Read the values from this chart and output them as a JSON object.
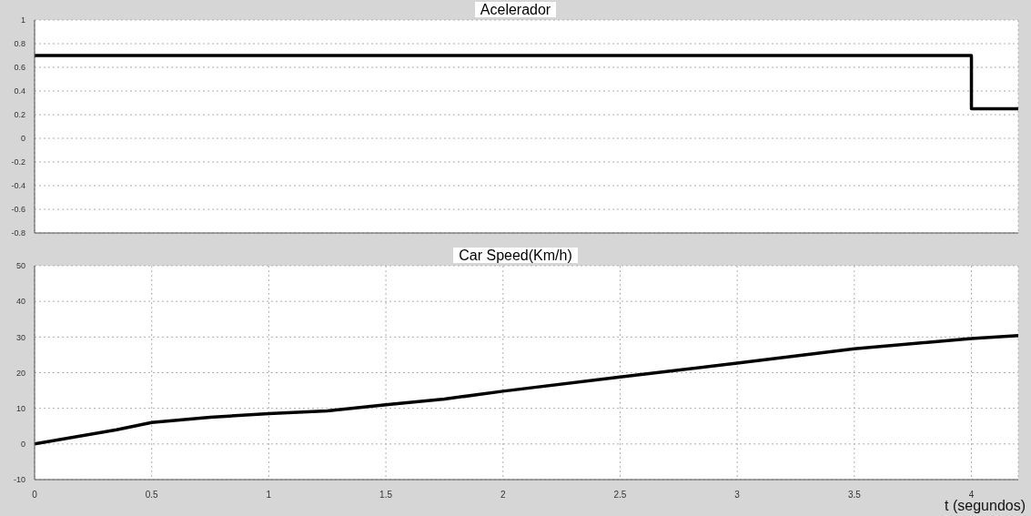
{
  "chart_data": [
    {
      "type": "step",
      "title": "Acelerador",
      "x": [
        0,
        4,
        4.2
      ],
      "series": [
        {
          "color": "#000000",
          "values": [
            0.7,
            0.25,
            0.25
          ]
        }
      ],
      "xlim": [
        0,
        4.2
      ],
      "xticks": [
        0,
        0.5,
        1,
        1.5,
        2,
        2.5,
        3,
        3.5,
        4
      ],
      "ylim": [
        -0.8,
        1
      ],
      "yticks": [
        -0.8,
        -0.6,
        -0.4,
        -0.2,
        0,
        0.2,
        0.4,
        0.6,
        0.8,
        1
      ],
      "grid": true,
      "tick_labels": "y"
    },
    {
      "type": "line",
      "title": "Car Speed(Km/h)",
      "xlabel": "t (segundos)",
      "x": [
        0,
        0.35,
        0.5,
        0.75,
        1,
        1.25,
        1.5,
        1.75,
        2,
        2.5,
        3,
        3.5,
        4,
        4.2
      ],
      "series": [
        {
          "color": "#000000",
          "values": [
            0,
            4,
            6,
            7.5,
            8.5,
            9.3,
            11,
            12.6,
            14.8,
            18.8,
            22.7,
            26.7,
            29.6,
            30.4
          ]
        }
      ],
      "xlim": [
        0,
        4.2
      ],
      "xticks": [
        0,
        0.5,
        1,
        1.5,
        2,
        2.5,
        3,
        3.5,
        4
      ],
      "ylim": [
        -10,
        50
      ],
      "yticks": [
        -10,
        0,
        10,
        20,
        30,
        40,
        50
      ],
      "grid": true
    }
  ]
}
